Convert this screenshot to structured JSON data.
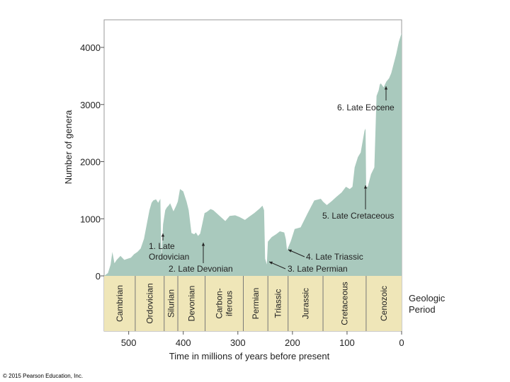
{
  "chart_data": {
    "type": "area",
    "xlabel": "Time in millions of years before present",
    "ylabel": "Number of genera",
    "xlim": [
      545,
      0
    ],
    "ylim": [
      0,
      4300
    ],
    "x_ticks": [
      500,
      400,
      300,
      200,
      100,
      0
    ],
    "y_ticks": [
      0,
      1000,
      2000,
      3000,
      4000
    ],
    "fill_color": "#a9c9bd",
    "band_color": "#efe6b8",
    "period_band_label": "Geologic Period",
    "periods": [
      {
        "name": "Cambrian",
        "start": 545,
        "end": 488
      },
      {
        "name": "Ordovician",
        "start": 488,
        "end": 435
      },
      {
        "name": "Silurian",
        "start": 435,
        "end": 410
      },
      {
        "name": "Devonian",
        "start": 410,
        "end": 360
      },
      {
        "name": "Carbon-\niferous",
        "start": 360,
        "end": 290
      },
      {
        "name": "Permian",
        "start": 290,
        "end": 245
      },
      {
        "name": "Triassic",
        "start": 245,
        "end": 208
      },
      {
        "name": "Jurassic",
        "start": 208,
        "end": 144
      },
      {
        "name": "Cretaceous",
        "start": 144,
        "end": 65
      },
      {
        "name": "Cenozoic",
        "start": 65,
        "end": 0
      }
    ],
    "series": [
      {
        "x": [
          545,
          538,
          533,
          530,
          526,
          522,
          515,
          508,
          502,
          496,
          490,
          484,
          478,
          472,
          466,
          462,
          458,
          455,
          450,
          446,
          442,
          440,
          437,
          433,
          430,
          427,
          424,
          418,
          413,
          410,
          406,
          400,
          394,
          390,
          385,
          380,
          377,
          373,
          369,
          366,
          361,
          357,
          350,
          345,
          338,
          330,
          323,
          315,
          305,
          297,
          287,
          280,
          270,
          260,
          255,
          252,
          250,
          247,
          245,
          238,
          230,
          223,
          215,
          212,
          210,
          203,
          196,
          185,
          172,
          160,
          148,
          144,
          137,
          128,
          120,
          110,
          102,
          95,
          90,
          86,
          80,
          75,
          68,
          66,
          65,
          62,
          56,
          50,
          46,
          42,
          40,
          38,
          33,
          28,
          23,
          19,
          10,
          5,
          0
        ],
        "y": [
          0,
          50,
          200,
          420,
          220,
          280,
          350,
          280,
          300,
          320,
          380,
          420,
          480,
          650,
          950,
          1150,
          1280,
          1320,
          1340,
          1280,
          1350,
          300,
          900,
          1150,
          1200,
          1230,
          1270,
          1130,
          1230,
          1300,
          1520,
          1480,
          1300,
          1150,
          750,
          730,
          760,
          700,
          740,
          870,
          1100,
          1120,
          1170,
          1150,
          1090,
          1020,
          960,
          1050,
          1060,
          1030,
          980,
          1030,
          1100,
          1180,
          1230,
          1150,
          300,
          200,
          600,
          680,
          730,
          780,
          760,
          640,
          450,
          610,
          820,
          850,
          1100,
          1320,
          1350,
          1300,
          1240,
          1310,
          1380,
          1460,
          1560,
          1520,
          1560,
          1900,
          2080,
          2160,
          2540,
          2580,
          1560,
          1560,
          1780,
          1900,
          3150,
          3250,
          3350,
          3370,
          3300,
          3400,
          3460,
          3550,
          3880,
          4100,
          4250
        ]
      }
    ],
    "annotations": [
      {
        "text": "1. Late\nOrdovician",
        "x": 440,
        "y": 700
      },
      {
        "text": "2. Late Devonian",
        "x": 367,
        "y": 570
      },
      {
        "text": "3. Late Permian",
        "x": 250,
        "y": 280
      },
      {
        "text": "4. Late Triassic",
        "x": 208,
        "y": 450
      },
      {
        "text": "5. Late Cretaceous",
        "x": 65,
        "y": 1560
      },
      {
        "text": "6. Late Eocene",
        "x": 33,
        "y": 3370
      }
    ]
  },
  "copyright": "© 2015 Pearson Education, Inc."
}
